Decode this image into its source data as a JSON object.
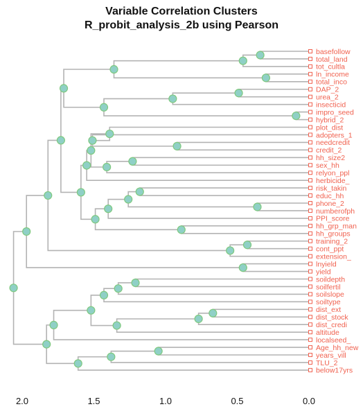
{
  "title": "Variable Correlation Clusters",
  "subtitle": "R_probit_analysis_2b using Pearson",
  "colors": {
    "branch": "#b3b3b3",
    "node_fill": "#8fd0c6",
    "node_stroke": "#7fc97f",
    "leaf_label": "#f0614f",
    "leaf_marker": "#f0614f"
  },
  "chart_data": {
    "type": "dendrogram",
    "orientation": "horizontal",
    "xlim": [
      2.0,
      0.0
    ],
    "x_ticks": [
      "2.0",
      "1.5",
      "1.0",
      "0.5",
      "0.0"
    ],
    "leaves": [
      "basefollow",
      "total_land",
      "tot_cultla",
      "ln_income",
      "total_inco",
      "DAP_2",
      "urea_2",
      "insecticid",
      "impro_seed",
      "hybrid_2",
      "plot_dist",
      "adopters_1",
      "needcredit",
      "credit_2",
      "hh_size2",
      "sex_hh",
      "relyon_ppl",
      "herbicide_",
      "risk_takin",
      "educ_hh",
      "phone_2",
      "numberofph",
      "PPI_score",
      "hh_grp_man",
      "hh_groups",
      "training_2",
      "cont_ppt",
      "extension_",
      "lnyield",
      "yield",
      "soildepth",
      "soilfertil",
      "soilslope",
      "soiltype",
      "dist_ext",
      "dist_stock",
      "dist_credi",
      "altitude",
      "localseed_",
      "Age_hh_new",
      "years_vill",
      "TLU_2",
      "below17yrs"
    ],
    "merges": [
      {
        "id": "m01",
        "h": 0.34,
        "a": "basefollow",
        "b": "total_land"
      },
      {
        "id": "m02",
        "h": 0.46,
        "a": "m01",
        "b": "tot_cultla"
      },
      {
        "id": "m03",
        "h": 0.3,
        "a": "ln_income",
        "b": "total_inco"
      },
      {
        "id": "m04",
        "h": 1.36,
        "a": "m02",
        "b": "m03"
      },
      {
        "id": "m05",
        "h": 0.49,
        "a": "DAP_2",
        "b": "urea_2"
      },
      {
        "id": "m06",
        "h": 0.95,
        "a": "m05",
        "b": "insecticid"
      },
      {
        "id": "m07",
        "h": 0.09,
        "a": "impro_seed",
        "b": "hybrid_2"
      },
      {
        "id": "m08",
        "h": 1.43,
        "a": "m06",
        "b": "m07"
      },
      {
        "id": "m09",
        "h": 1.71,
        "a": "m04",
        "b": "m08"
      },
      {
        "id": "m10",
        "h": 0.92,
        "a": "needcredit",
        "b": "credit_2"
      },
      {
        "id": "m11",
        "h": 1.51,
        "a": "adopters_1",
        "b": "m10"
      },
      {
        "id": "m12",
        "h": 1.39,
        "a": "plot_dist",
        "b": "m11"
      },
      {
        "id": "m13",
        "h": 1.23,
        "a": "hh_size2",
        "b": "sex_hh"
      },
      {
        "id": "m14",
        "h": 1.41,
        "a": "m13",
        "b": "relyon_ppl"
      },
      {
        "id": "m15",
        "h": 1.52,
        "a": "m12",
        "b": "m14"
      },
      {
        "id": "m16",
        "h": 1.55,
        "a": "m15",
        "b": "herbicide_"
      },
      {
        "id": "m17",
        "h": 1.18,
        "a": "risk_takin",
        "b": "educ_hh"
      },
      {
        "id": "m18",
        "h": 0.36,
        "a": "phone_2",
        "b": "numberofph"
      },
      {
        "id": "m19",
        "h": 1.26,
        "a": "m17",
        "b": "m18"
      },
      {
        "id": "m20",
        "h": 1.4,
        "a": "m19",
        "b": "PPI_score"
      },
      {
        "id": "m21",
        "h": 0.89,
        "a": "hh_grp_man",
        "b": "hh_groups"
      },
      {
        "id": "m22",
        "h": 1.49,
        "a": "m20",
        "b": "m21"
      },
      {
        "id": "m23",
        "h": 1.59,
        "a": "m16",
        "b": "m22"
      },
      {
        "id": "m24",
        "h": 1.73,
        "a": "m09",
        "b": "m23"
      },
      {
        "id": "m25",
        "h": 0.43,
        "a": "training_2",
        "b": "cont_ppt"
      },
      {
        "id": "m26",
        "h": 0.55,
        "a": "m25",
        "b": "extension_"
      },
      {
        "id": "m27",
        "h": 1.82,
        "a": "m24",
        "b": "m26"
      },
      {
        "id": "m28",
        "h": 0.46,
        "a": "lnyield",
        "b": "yield"
      },
      {
        "id": "m29",
        "h": 1.97,
        "a": "m27",
        "b": "m28"
      },
      {
        "id": "m30",
        "h": 1.21,
        "a": "soildepth",
        "b": "soilfertil"
      },
      {
        "id": "m31",
        "h": 1.33,
        "a": "m30",
        "b": "soilslope"
      },
      {
        "id": "m32",
        "h": 1.43,
        "a": "m31",
        "b": "soiltype"
      },
      {
        "id": "m33",
        "h": 0.67,
        "a": "dist_ext",
        "b": "dist_stock"
      },
      {
        "id": "m34",
        "h": 0.77,
        "a": "m33",
        "b": "dist_credi"
      },
      {
        "id": "m35",
        "h": 1.34,
        "a": "m34",
        "b": "altitude"
      },
      {
        "id": "m36",
        "h": 1.52,
        "a": "m32",
        "b": "m35"
      },
      {
        "id": "m37",
        "h": 1.78,
        "a": "m36",
        "b": "localseed_"
      },
      {
        "id": "m38",
        "h": 1.05,
        "a": "Age_hh_new",
        "b": "years_vill"
      },
      {
        "id": "m39",
        "h": 1.38,
        "a": "m38",
        "b": "TLU_2"
      },
      {
        "id": "m40",
        "h": 1.61,
        "a": "m39",
        "b": "below17yrs"
      },
      {
        "id": "m41",
        "h": 1.83,
        "a": "m37",
        "b": "m40"
      },
      {
        "id": "m42",
        "h": 2.06,
        "a": "m29",
        "b": "m41"
      }
    ]
  }
}
